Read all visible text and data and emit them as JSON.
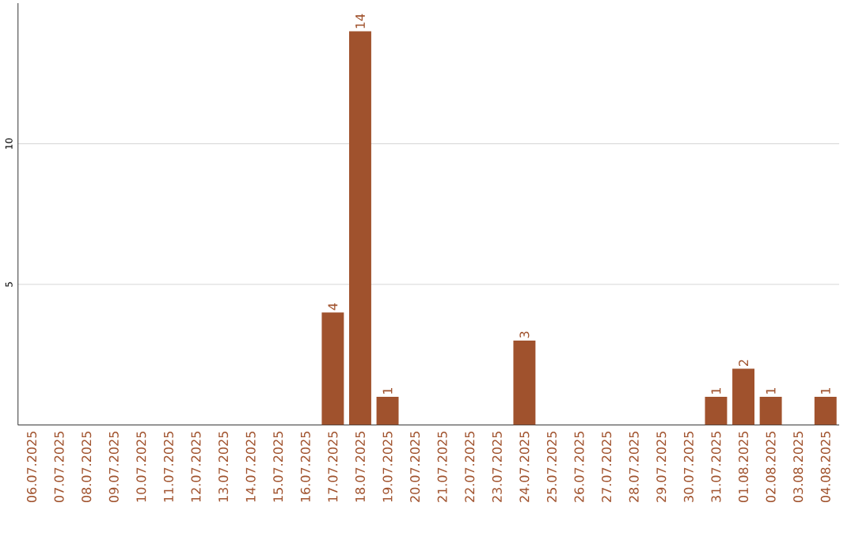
{
  "chart_data": {
    "type": "bar",
    "categories": [
      "06.07.2025",
      "07.07.2025",
      "08.07.2025",
      "09.07.2025",
      "10.07.2025",
      "11.07.2025",
      "12.07.2025",
      "13.07.2025",
      "14.07.2025",
      "15.07.2025",
      "16.07.2025",
      "17.07.2025",
      "18.07.2025",
      "19.07.2025",
      "20.07.2025",
      "21.07.2025",
      "22.07.2025",
      "23.07.2025",
      "24.07.2025",
      "25.07.2025",
      "26.07.2025",
      "27.07.2025",
      "28.07.2025",
      "29.07.2025",
      "30.07.2025",
      "31.07.2025",
      "01.08.2025",
      "02.08.2025",
      "03.08.2025",
      "04.08.2025"
    ],
    "values": [
      0,
      0,
      0,
      0,
      0,
      0,
      0,
      0,
      0,
      0,
      0,
      4,
      14,
      1,
      0,
      0,
      0,
      0,
      3,
      0,
      0,
      0,
      0,
      0,
      0,
      1,
      2,
      1,
      0,
      1
    ],
    "value_labels": [
      null,
      null,
      null,
      null,
      null,
      null,
      null,
      null,
      null,
      null,
      null,
      "4",
      "14",
      "1",
      null,
      null,
      null,
      null,
      "3",
      null,
      null,
      null,
      null,
      null,
      null,
      "1",
      "2",
      "1",
      null,
      "1"
    ],
    "color": "#a0522d",
    "ylim": [
      0,
      15
    ],
    "yticks": [
      5,
      10
    ],
    "grid": "y"
  }
}
